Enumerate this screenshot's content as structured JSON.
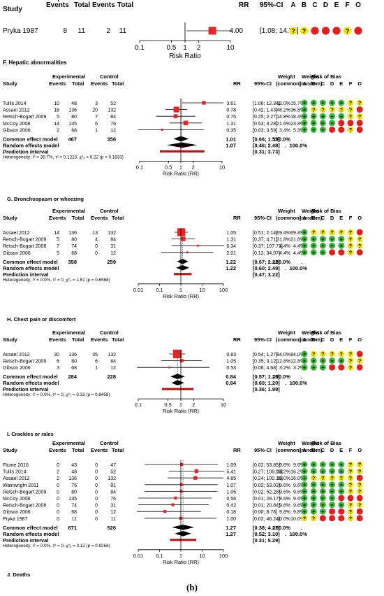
{
  "colors": {
    "study_box": "#e8262a",
    "summary_diamond": "#000000",
    "prediction_bar": "#b01a1a",
    "bias_low": "#3cb33c",
    "bias_unclear": "#f2e40a",
    "bias_high": "#e01f1f",
    "line": "#000000",
    "dotted": "#555555"
  },
  "headers": {
    "study": "Study",
    "experimental": "Experimental",
    "control": "Control",
    "events": "Events",
    "total": "Total",
    "rr": "RR",
    "ci": "95%-CI",
    "weight": "Weight",
    "common_sub": "(common)",
    "random_sub": "(random)",
    "rob": "Risk of Bias",
    "rob_letters": [
      "A",
      "B",
      "C",
      "D",
      "E",
      "F",
      "O"
    ],
    "x_axis_label": "Risk Ratio",
    "x_axis_label_rr": "Risk Ratio (RR)"
  },
  "rob_symbols": {
    "low": "+",
    "unclear": "?",
    "high": ""
  },
  "figure_caption": "(b)",
  "chart_data": [
    {
      "type": "forest",
      "panel_title": "F. Hepatic abnormalities",
      "scale": "log",
      "ticks": [
        "0.1",
        "0.5",
        "1",
        "2",
        "10"
      ],
      "tick_values": [
        0.1,
        0.5,
        1,
        2,
        10
      ],
      "xlim": [
        0.1,
        10
      ],
      "studies": [
        {
          "name": "Pryka 1987",
          "ee": "8",
          "et": "11",
          "ce": "2",
          "ct": "11",
          "rr": 4.0,
          "lo": 1.08,
          "hi": 14.75,
          "rr_text": "4.00",
          "ci_text": "[1.08; 14.75]",
          "w_common": "",
          "w_random": "",
          "weight": 1,
          "rob": [
            "u",
            "u",
            "h",
            "h",
            "h",
            "u",
            "h"
          ]
        }
      ]
    },
    {
      "type": "forest",
      "panel_title": "G. Bronchospasm or wheezing",
      "scale": "log",
      "ticks": [
        "0.1",
        "0.5",
        "1",
        "2",
        "10"
      ],
      "tick_values": [
        0.1,
        0.5,
        1,
        2,
        10
      ],
      "xlim": [
        0.1,
        10
      ],
      "studies": [
        {
          "name": "Tullis 2014",
          "ee": "10",
          "et": "48",
          "ce": "3",
          "ct": "52",
          "rr": 3.61,
          "lo": 1.06,
          "hi": 12.34,
          "rr_text": "3.61",
          "ci_text": "[1.06; 12.34]",
          "w_common": "12.0%",
          "w_random": "15.7%",
          "weight": 15.7,
          "rob": [
            "l",
            "l",
            "l",
            "l",
            "l",
            "u",
            "u"
          ]
        },
        {
          "name": "Assael 2012",
          "ee": "16",
          "et": "136",
          "ce": "20",
          "ct": "132",
          "rr": 0.78,
          "lo": 0.42,
          "hi": 1.43,
          "rr_text": "0.78",
          "ci_text": "[0.42; 1.43]",
          "w_common": "48.2%",
          "w_random": "36.8%",
          "weight": 36.8,
          "rob": [
            "l",
            "u",
            "u",
            "u",
            "u",
            "u",
            "h"
          ]
        },
        {
          "name": "Retsch-Bogart 2009",
          "ee": "5",
          "et": "80",
          "ce": "7",
          "ct": "84",
          "rr": 0.75,
          "lo": 0.25,
          "hi": 2.27,
          "rr_text": "0.75",
          "ci_text": "[0.25; 2.27]",
          "w_common": "14.8%",
          "w_random": "18.4%",
          "weight": 18.4,
          "rob": [
            "l",
            "l",
            "l",
            "l",
            "l",
            "u",
            "u"
          ]
        },
        {
          "name": "McCoy 2008",
          "ee": "14",
          "et": "135",
          "ce": "6",
          "ct": "76",
          "rr": 1.31,
          "lo": 0.53,
          "hi": 3.28,
          "rr_text": "1.31",
          "ci_text": "[0.53; 3.28]",
          "w_common": "21.6%",
          "w_random": "23.8%",
          "weight": 23.8,
          "rob": [
            "l",
            "l",
            "l",
            "l",
            "h",
            "h",
            "h"
          ]
        },
        {
          "name": "Gibson 2006",
          "ee": "2",
          "et": "68",
          "ce": "1",
          "ct": "12",
          "rr": 0.35,
          "lo": 0.03,
          "hi": 3.59,
          "rr_text": "0.35",
          "ci_text": "[0.03; 3.59]",
          "w_common": "3.4%",
          "w_random": "5.3%",
          "weight": 5.3,
          "rob": [
            "l",
            "l",
            "l",
            "h",
            "h",
            "u",
            "h"
          ]
        }
      ],
      "common": {
        "label": "Common effect model",
        "et": "467",
        "ct": "356",
        "rr": 1.01,
        "lo": 0.66,
        "hi": 1.55,
        "rr_text": "1.01",
        "ci_text": "[0.66; 1.55]",
        "w_common": "100.0%",
        "w_random": "."
      },
      "random": {
        "label": "Random effects model",
        "rr": 1.07,
        "lo": 0.46,
        "hi": 2.48,
        "rr_text": "1.07",
        "ci_text": "[0.46; 2.48]",
        "w_common": ".",
        "w_random": "100.0%"
      },
      "prediction": {
        "label": "Prediction interval",
        "lo": 0.31,
        "hi": 3.73,
        "ci_text": "[0.31; 3.73]"
      },
      "heterogeneity": "Heterogeneity: I² = 35.7%, τ² = 0.1223, χ²₄ = 6.22 (p = 0.1833)"
    },
    {
      "type": "forest",
      "panel_title": "H. Chest pain or discomfort",
      "scale": "log",
      "ticks": [
        "0.01",
        "0.1",
        "1",
        "10",
        "100"
      ],
      "tick_values": [
        0.01,
        0.1,
        1,
        10,
        100
      ],
      "xlim": [
        0.01,
        100
      ],
      "studies": [
        {
          "name": "Assael 2012",
          "ee": "14",
          "et": "136",
          "ce": "13",
          "ct": "132",
          "rr": 1.05,
          "lo": 0.51,
          "hi": 2.14,
          "rr_text": "1.05",
          "ci_text": "[0.51; 2.14]",
          "w_common": "69.4%",
          "w_random": "69.4%",
          "weight": 69.4,
          "rob": [
            "l",
            "u",
            "u",
            "u",
            "u",
            "u",
            "h"
          ]
        },
        {
          "name": "Retsch-Bogart 2009",
          "ee": "5",
          "et": "80",
          "ce": "4",
          "ct": "84",
          "rr": 1.31,
          "lo": 0.37,
          "hi": 4.71,
          "rr_text": "1.31",
          "ci_text": "[0.37; 4.71]",
          "w_common": "21.8%",
          "w_random": "21.8%",
          "weight": 21.8,
          "rob": [
            "l",
            "l",
            "l",
            "l",
            "l",
            "u",
            "u"
          ]
        },
        {
          "name": "Retsch-Bogart 2008",
          "ee": "7",
          "et": "74",
          "ce": "0",
          "ct": "31",
          "rr": 6.34,
          "lo": 0.37,
          "hi": 107.71,
          "rr_text": "6.34",
          "ci_text": "[0.37; 107.71]",
          "w_common": "4.4%",
          "w_random": "4.4%",
          "weight": 4.4,
          "rob": [
            "l",
            "l",
            "l",
            "l",
            "l",
            "u",
            "u"
          ]
        },
        {
          "name": "Gibson 2006",
          "ee": "5",
          "et": "68",
          "ce": "0",
          "ct": "12",
          "rr": 2.01,
          "lo": 0.12,
          "hi": 34.07,
          "rr_text": "2.01",
          "ci_text": "[0.12; 34.07]",
          "w_common": "4.4%",
          "w_random": "4.4%",
          "weight": 4.4,
          "rob": [
            "l",
            "l",
            "l",
            "h",
            "h",
            "u",
            "h"
          ]
        }
      ],
      "common": {
        "label": "Common effect model",
        "et": "358",
        "ct": "259",
        "rr": 1.22,
        "lo": 0.67,
        "hi": 2.22,
        "rr_text": "1.22",
        "ci_text": "[0.67; 2.22]",
        "w_common": "100.0%",
        "w_random": "."
      },
      "random": {
        "label": "Random effects model",
        "rr": 1.22,
        "lo": 0.6,
        "hi": 2.49,
        "rr_text": "1.22",
        "ci_text": "[0.60; 2.49]",
        "w_common": ".",
        "w_random": "100.0%"
      },
      "prediction": {
        "label": "Prediction interval",
        "lo": 0.47,
        "hi": 3.22,
        "ci_text": "[0.47; 3.22]"
      },
      "heterogeneity": "Heterogeneity: I² = 0.0%, τ² = 0, χ²₃ = 1.61 (p = 0.6568)"
    },
    {
      "type": "forest",
      "panel_title": "I. Crackles or rales",
      "scale": "log",
      "ticks": [
        "0.1",
        "0.5",
        "1",
        "2",
        "10"
      ],
      "tick_values": [
        0.1,
        0.5,
        1,
        2,
        10
      ],
      "xlim": [
        0.1,
        10
      ],
      "studies": [
        {
          "name": "Assael 2012",
          "ee": "30",
          "et": "136",
          "ce": "35",
          "ct": "132",
          "rr": 0.83,
          "lo": 0.54,
          "hi": 1.27,
          "rr_text": "0.83",
          "ci_text": "[0.54; 1.27]",
          "w_common": "84.0%",
          "w_random": "84.0%",
          "weight": 84.0,
          "rob": [
            "l",
            "u",
            "u",
            "u",
            "u",
            "u",
            "h"
          ]
        },
        {
          "name": "Retsch-Bogart 2009",
          "ee": "6",
          "et": "80",
          "ce": "6",
          "ct": "84",
          "rr": 1.05,
          "lo": 0.35,
          "hi": 3.12,
          "rr_text": "1.05",
          "ci_text": "[0.35; 3.12]",
          "w_common": "12.8%",
          "w_random": "12.8%",
          "weight": 12.8,
          "rob": [
            "l",
            "l",
            "l",
            "l",
            "l",
            "u",
            "u"
          ]
        },
        {
          "name": "Gibson 2006",
          "ee": "3",
          "et": "68",
          "ce": "1",
          "ct": "12",
          "rr": 0.53,
          "lo": 0.06,
          "hi": 4.68,
          "rr_text": "0.53",
          "ci_text": "[0.06; 4.68]",
          "w_common": "3.2%",
          "w_random": "3.2%",
          "weight": 3.2,
          "rob": [
            "l",
            "l",
            "l",
            "h",
            "h",
            "u",
            "h"
          ]
        }
      ],
      "common": {
        "label": "Common effect model",
        "et": "284",
        "ct": "228",
        "rr": 0.84,
        "lo": 0.57,
        "hi": 1.25,
        "rr_text": "0.84",
        "ci_text": "[0.57; 1.25]",
        "w_common": "100.0%",
        "w_random": "."
      },
      "random": {
        "label": "Random effects model",
        "rr": 0.84,
        "lo": 0.6,
        "hi": 1.2,
        "rr_text": "0.84",
        "ci_text": "[0.60; 1.20]",
        "w_common": ".",
        "w_random": "100.0%"
      },
      "prediction": {
        "label": "Prediction interval",
        "lo": 0.36,
        "hi": 1.99,
        "ci_text": "[0.36; 1.99]"
      },
      "heterogeneity": "Heterogeneity: I² = 0.0%, τ² = 0, χ²₂ = 0.33 (p = 0.8458)"
    },
    {
      "type": "forest",
      "panel_title": "J. Deaths",
      "scale": "log",
      "ticks": [
        "0.01",
        "0.1",
        "1",
        "10",
        "100"
      ],
      "tick_values": [
        0.01,
        0.1,
        1,
        10,
        100
      ],
      "xlim": [
        0.01,
        100
      ],
      "studies": [
        {
          "name": "Flume 2016",
          "ee": "0",
          "et": "43",
          "ce": "0",
          "ct": "47",
          "rr": 1.09,
          "lo": 0.02,
          "hi": 53.85,
          "rr_text": "1.09",
          "ci_text": "[0.02; 53.85]",
          "w_common": "9.6%",
          "w_random": "9.6%",
          "weight": 9.6,
          "rob": [
            "l",
            "l",
            "l",
            "l",
            "l",
            "u",
            "u"
          ]
        },
        {
          "name": "Tullis 2014",
          "ee": "2",
          "et": "48",
          "ce": "0",
          "ct": "52",
          "rr": 5.41,
          "lo": 0.27,
          "hi": 109.93,
          "rr_text": "5.41",
          "ci_text": "[0.27; 109.93]",
          "w_common": "16.2%",
          "w_random": "16.2%",
          "weight": 16.2,
          "rob": [
            "l",
            "l",
            "l",
            "l",
            "l",
            "u",
            "u"
          ]
        },
        {
          "name": "Assael 2012",
          "ee": "2",
          "et": "136",
          "ce": "0",
          "ct": "132",
          "rr": 4.85,
          "lo": 0.24,
          "hi": 100.15,
          "rr_text": "4.85",
          "ci_text": "[0.24; 100.15]",
          "w_common": "16.0%",
          "w_random": "16.0%",
          "weight": 16.0,
          "rob": [
            "l",
            "u",
            "u",
            "u",
            "u",
            "u",
            "h"
          ]
        },
        {
          "name": "Wainwright 2011",
          "ee": "0",
          "et": "76",
          "ce": "0",
          "ct": "81",
          "rr": 1.07,
          "lo": 0.02,
          "hi": 53.03,
          "rr_text": "1.07",
          "ci_text": "[0.02; 53.03]",
          "w_common": "9.6%",
          "w_random": "9.6%",
          "weight": 9.6,
          "rob": [
            "l",
            "l",
            "l",
            "l",
            "l",
            "u",
            "u"
          ]
        },
        {
          "name": "Retsch-Bogart 2009",
          "ee": "0",
          "et": "80",
          "ce": "0",
          "ct": "84",
          "rr": 1.05,
          "lo": 0.02,
          "hi": 52.28,
          "rr_text": "1.05",
          "ci_text": "[0.02; 52.28]",
          "w_common": "9.6%",
          "w_random": "9.6%",
          "weight": 9.6,
          "rob": [
            "l",
            "l",
            "l",
            "l",
            "l",
            "u",
            "u"
          ]
        },
        {
          "name": "McCoy 2008",
          "ee": "0",
          "et": "135",
          "ce": "0",
          "ct": "76",
          "rr": 0.56,
          "lo": 0.01,
          "hi": 28.17,
          "rr_text": "0.56",
          "ci_text": "[0.01; 28.17]",
          "w_common": "9.6%",
          "w_random": "9.6%",
          "weight": 9.6,
          "rob": [
            "l",
            "l",
            "l",
            "l",
            "h",
            "h",
            "h"
          ]
        },
        {
          "name": "Retsch-Bogart 2008",
          "ee": "0",
          "et": "74",
          "ce": "0",
          "ct": "31",
          "rr": 0.42,
          "lo": 0.01,
          "hi": 20.84,
          "rr_text": "0.42",
          "ci_text": "[0.01; 20.84]",
          "w_common": "9.6%",
          "w_random": "9.6%",
          "weight": 9.6,
          "rob": [
            "l",
            "l",
            "l",
            "l",
            "l",
            "u",
            "u"
          ]
        },
        {
          "name": "Gibson 2006",
          "ee": "0",
          "et": "68",
          "ce": "0",
          "ct": "12",
          "rr": 0.18,
          "lo": 0.0,
          "hi": 8.78,
          "rr_text": "0.18",
          "ci_text": "[0.00; 8.78]",
          "w_common": "9.8%",
          "w_random": "9.8%",
          "weight": 9.8,
          "rob": [
            "l",
            "l",
            "l",
            "h",
            "h",
            "u",
            "h"
          ]
        },
        {
          "name": "Pryka 1987",
          "ee": "0",
          "et": "11",
          "ce": "0",
          "ct": "11",
          "rr": 1.0,
          "lo": 0.02,
          "hi": 46.24,
          "rr_text": "1.00",
          "ci_text": "[0.02; 46.24]",
          "w_common": "10.0%",
          "w_random": "10.0%",
          "weight": 10.0,
          "rob": [
            "u",
            "u",
            "h",
            "h",
            "h",
            "u",
            "h"
          ]
        }
      ],
      "common": {
        "label": "Common effect model",
        "et": "671",
        "ct": "526",
        "rr": 1.27,
        "lo": 0.38,
        "hi": 4.27,
        "rr_text": "1.27",
        "ci_text": "[0.38; 4.27]",
        "w_common": "100.0%",
        "w_random": "."
      },
      "random": {
        "label": "Random effects model",
        "rr": 1.27,
        "lo": 0.52,
        "hi": 3.1,
        "rr_text": "1.27",
        "ci_text": "[0.52; 3.10]",
        "w_common": ".",
        "w_random": "100.0%"
      },
      "prediction": {
        "label": "Prediction interval",
        "lo": 0.31,
        "hi": 5.29,
        "ci_text": "[0.31; 5.29]"
      },
      "heterogeneity": "Heterogeneity: I² = 0.0%, τ² = 0, χ²₈ = 3.12 (p = 0.9268)"
    }
  ]
}
